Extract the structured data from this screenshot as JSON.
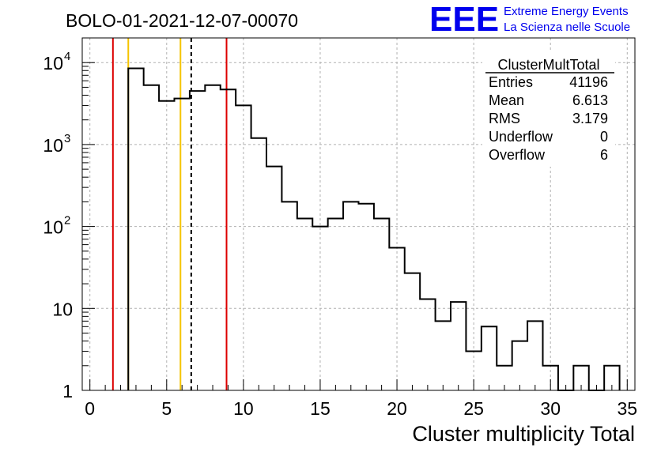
{
  "header": {
    "run_title": "BOLO-01-2021-12-07-00070",
    "logo_text": "EEE",
    "logo_line1": "Extreme Energy Events",
    "logo_line2": "La Scienza nelle Scuole",
    "logo_color": "#0000ee"
  },
  "stats": {
    "name": "ClusterMultTotal",
    "rows": [
      {
        "label": "Entries",
        "value": "41196"
      },
      {
        "label": "Mean",
        "value": "6.613"
      },
      {
        "label": "RMS",
        "value": "3.179"
      },
      {
        "label": "Underflow",
        "value": "0"
      },
      {
        "label": "Overflow",
        "value": "6"
      }
    ]
  },
  "chart_data": {
    "type": "histogram",
    "xlabel": "Cluster multiplicity Total",
    "ylabel": "",
    "xlim": [
      -0.5,
      35.5
    ],
    "ylim": [
      1,
      20000
    ],
    "log_y": true,
    "grid": true,
    "x_ticks": [
      0,
      5,
      10,
      15,
      20,
      25,
      30,
      35
    ],
    "y_ticks": [
      {
        "value": 1,
        "label": "1"
      },
      {
        "value": 10,
        "label": "10"
      },
      {
        "value": 100,
        "label": "10",
        "exp": "2"
      },
      {
        "value": 1000,
        "label": "10",
        "exp": "3"
      },
      {
        "value": 10000,
        "label": "10",
        "exp": "4"
      }
    ],
    "bin_edges_start": 2.5,
    "bin_width": 1,
    "counts": [
      8500,
      5300,
      3400,
      3650,
      4500,
      5300,
      4700,
      3000,
      1200,
      540,
      200,
      125,
      100,
      125,
      200,
      190,
      125,
      55,
      27,
      13,
      7,
      12,
      3,
      6,
      2,
      4,
      7,
      2,
      0,
      2,
      0,
      2
    ],
    "vlines": [
      {
        "x": 1.5,
        "color": "#dd0000",
        "style": "solid"
      },
      {
        "x": 8.9,
        "color": "#dd0000",
        "style": "solid"
      },
      {
        "x": 2.5,
        "color": "#f5c400",
        "style": "solid"
      },
      {
        "x": 5.9,
        "color": "#f5c400",
        "style": "solid"
      },
      {
        "x": 6.6,
        "color": "#000000",
        "style": "dashed"
      }
    ]
  }
}
